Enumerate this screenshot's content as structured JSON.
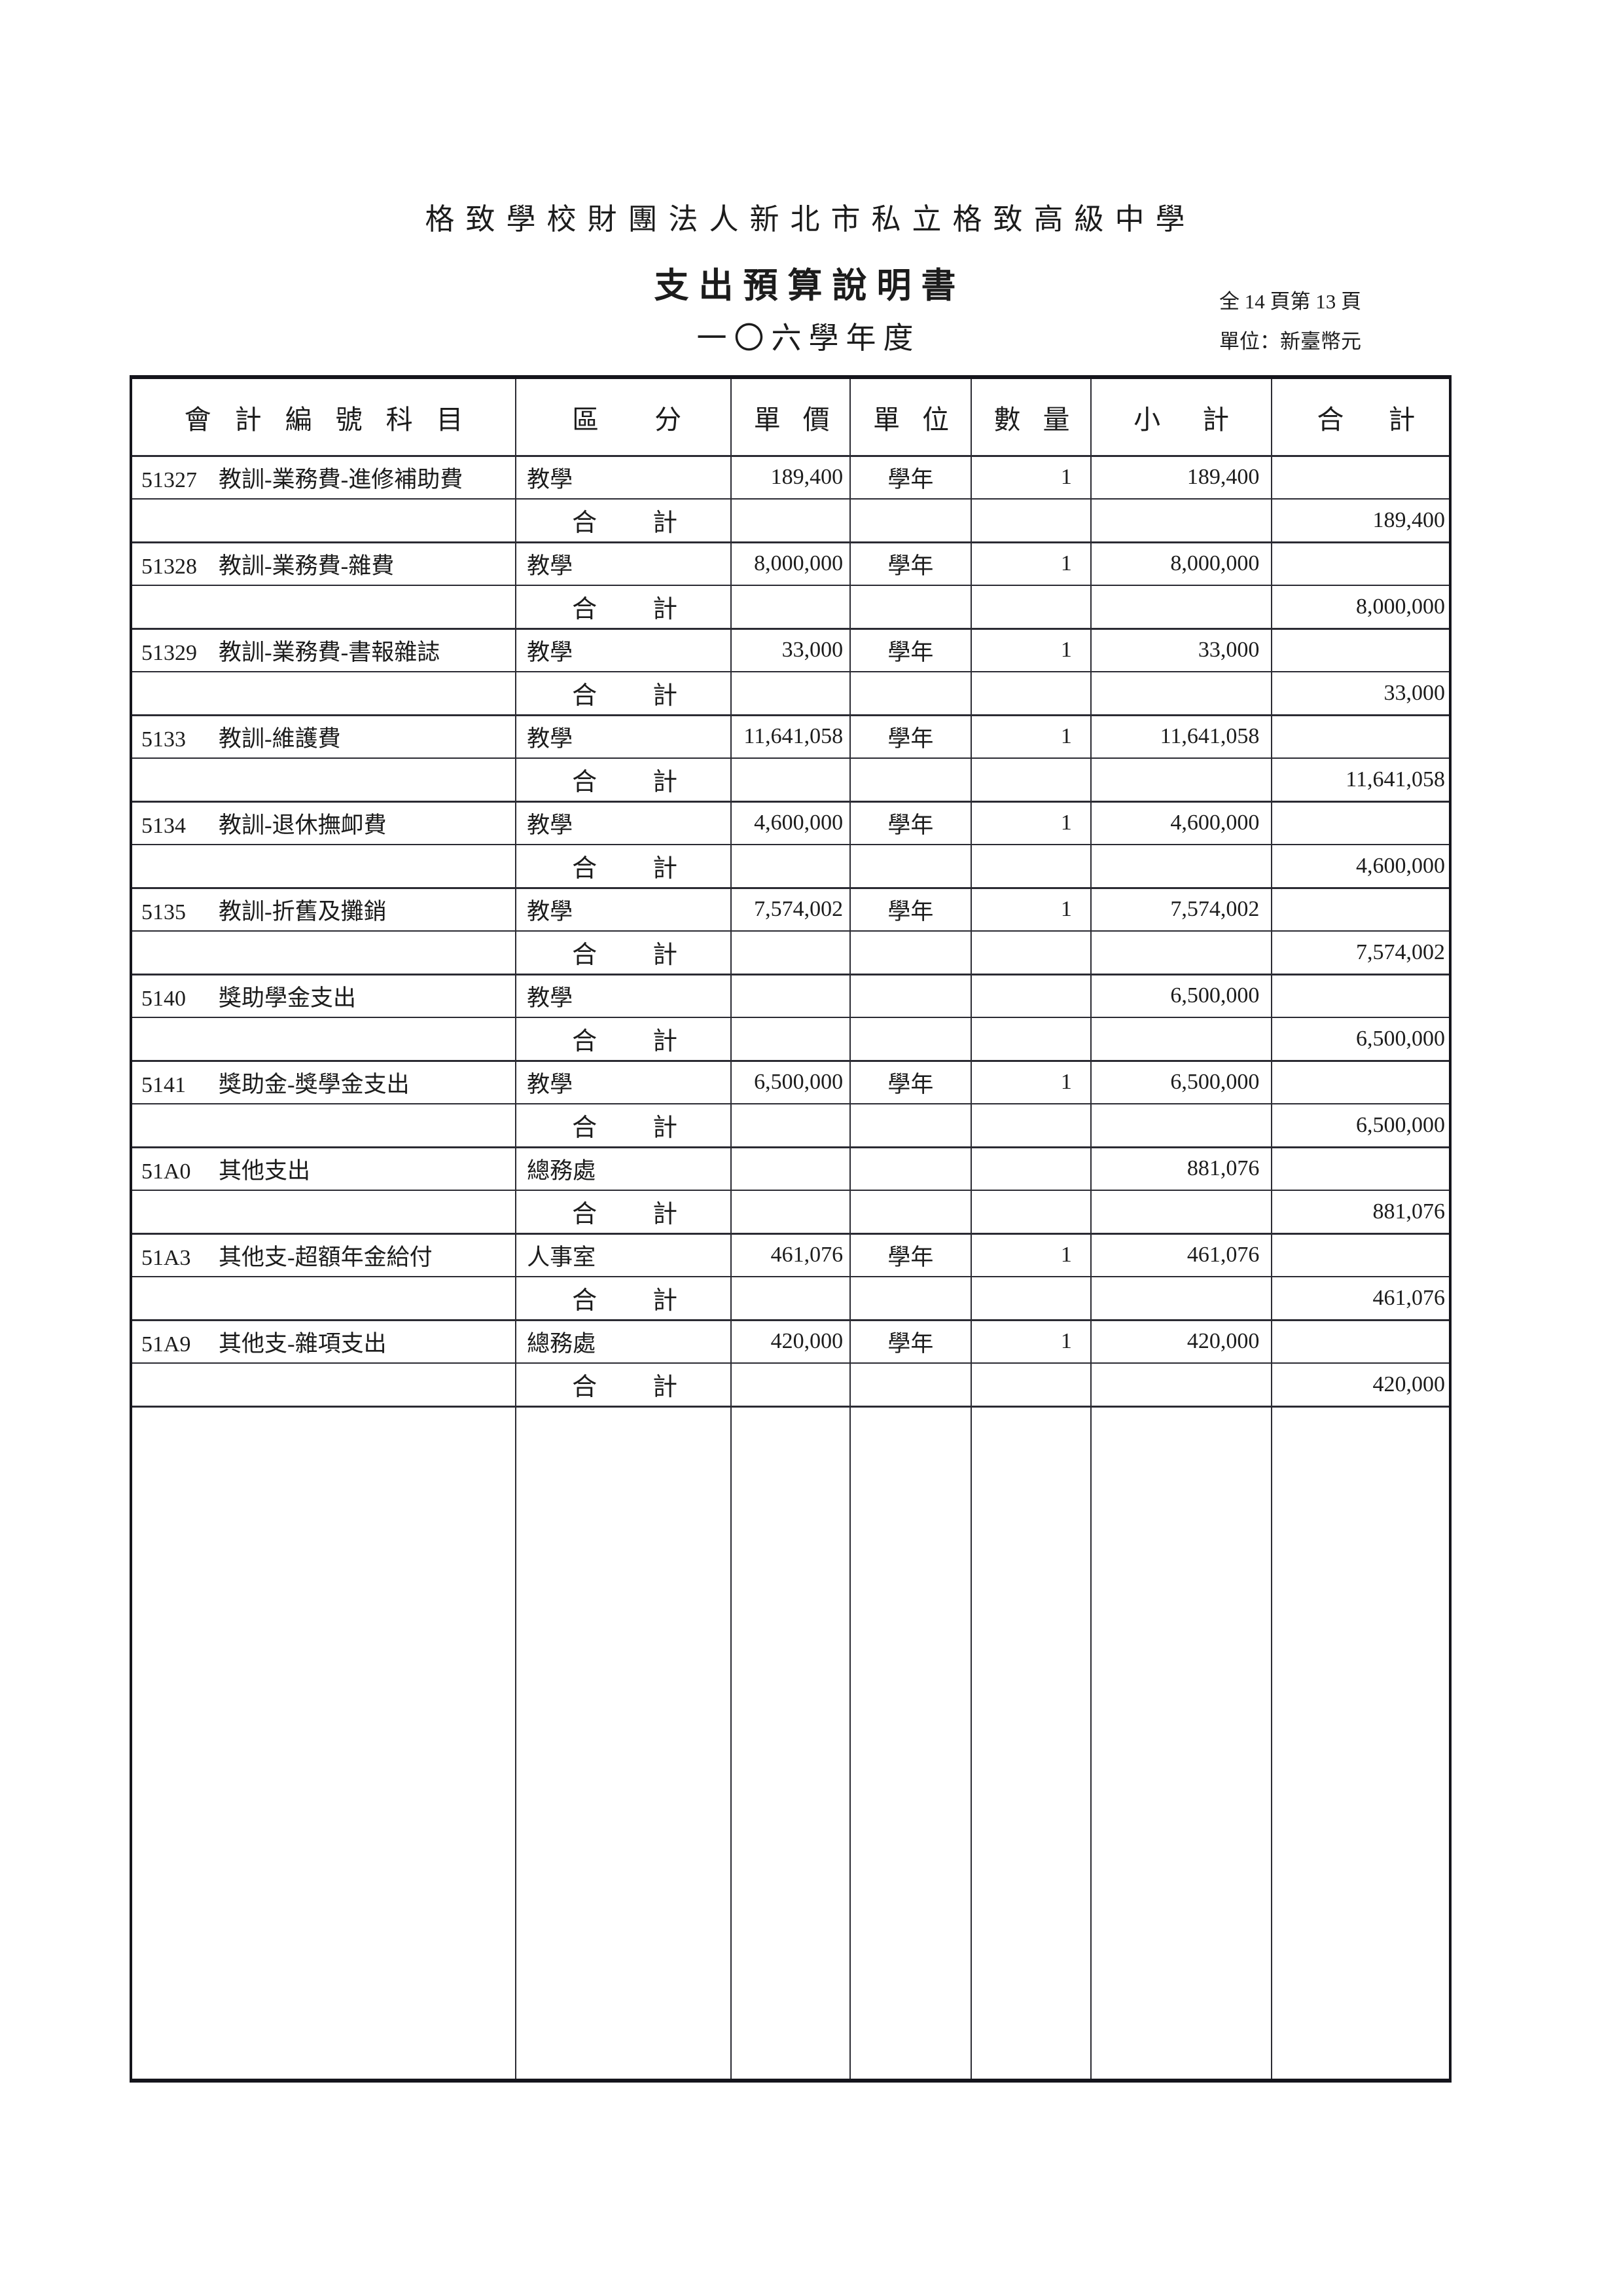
{
  "header": {
    "org_name": "格致學校財團法人新北市私立格致高級中學",
    "doc_title": "支出預算說明書",
    "school_year": "一〇六學年度",
    "page_info": "全 14 頁第 13 頁",
    "unit_note": "單位：新臺幣元"
  },
  "table": {
    "columns": [
      "會計編號科目",
      "區分",
      "單價",
      "單位",
      "數量",
      "小計",
      "合計"
    ],
    "subtotal_label": "合計",
    "rows": [
      {
        "type": "item",
        "code": "51327",
        "name": "教訓-業務費-進修補助費",
        "division": "教學",
        "unit_price": "189,400",
        "unit": "學年",
        "quantity": "1",
        "subtotal": "189,400",
        "total": ""
      },
      {
        "type": "subtotal",
        "total": "189,400"
      },
      {
        "type": "item",
        "code": "51328",
        "name": "教訓-業務費-雜費",
        "division": "教學",
        "unit_price": "8,000,000",
        "unit": "學年",
        "quantity": "1",
        "subtotal": "8,000,000",
        "total": ""
      },
      {
        "type": "subtotal",
        "total": "8,000,000"
      },
      {
        "type": "item",
        "code": "51329",
        "name": "教訓-業務費-書報雜誌",
        "division": "教學",
        "unit_price": "33,000",
        "unit": "學年",
        "quantity": "1",
        "subtotal": "33,000",
        "total": ""
      },
      {
        "type": "subtotal",
        "total": "33,000"
      },
      {
        "type": "item",
        "code": "5133",
        "name": "教訓-維護費",
        "division": "教學",
        "unit_price": "11,641,058",
        "unit": "學年",
        "quantity": "1",
        "subtotal": "11,641,058",
        "total": ""
      },
      {
        "type": "subtotal",
        "total": "11,641,058"
      },
      {
        "type": "item",
        "code": "5134",
        "name": "教訓-退休撫卹費",
        "division": "教學",
        "unit_price": "4,600,000",
        "unit": "學年",
        "quantity": "1",
        "subtotal": "4,600,000",
        "total": ""
      },
      {
        "type": "subtotal",
        "total": "4,600,000"
      },
      {
        "type": "item",
        "code": "5135",
        "name": "教訓-折舊及攤銷",
        "division": "教學",
        "unit_price": "7,574,002",
        "unit": "學年",
        "quantity": "1",
        "subtotal": "7,574,002",
        "total": ""
      },
      {
        "type": "subtotal",
        "total": "7,574,002"
      },
      {
        "type": "item",
        "code": "5140",
        "name": "獎助學金支出",
        "division": "教學",
        "unit_price": "",
        "unit": "",
        "quantity": "",
        "subtotal": "6,500,000",
        "total": ""
      },
      {
        "type": "subtotal",
        "total": "6,500,000"
      },
      {
        "type": "item",
        "code": "5141",
        "name": "獎助金-獎學金支出",
        "division": "教學",
        "unit_price": "6,500,000",
        "unit": "學年",
        "quantity": "1",
        "subtotal": "6,500,000",
        "total": ""
      },
      {
        "type": "subtotal",
        "total": "6,500,000"
      },
      {
        "type": "item",
        "code": "51A0",
        "name": "其他支出",
        "division": "總務處",
        "unit_price": "",
        "unit": "",
        "quantity": "",
        "subtotal": "881,076",
        "total": ""
      },
      {
        "type": "subtotal",
        "total": "881,076"
      },
      {
        "type": "item",
        "code": "51A3",
        "name": "其他支-超額年金給付",
        "division": "人事室",
        "unit_price": "461,076",
        "unit": "學年",
        "quantity": "1",
        "subtotal": "461,076",
        "total": ""
      },
      {
        "type": "subtotal",
        "total": "461,076"
      },
      {
        "type": "item",
        "code": "51A9",
        "name": "其他支-雜項支出",
        "division": "總務處",
        "unit_price": "420,000",
        "unit": "學年",
        "quantity": "1",
        "subtotal": "420,000",
        "total": ""
      },
      {
        "type": "subtotal",
        "total": "420,000"
      }
    ]
  }
}
